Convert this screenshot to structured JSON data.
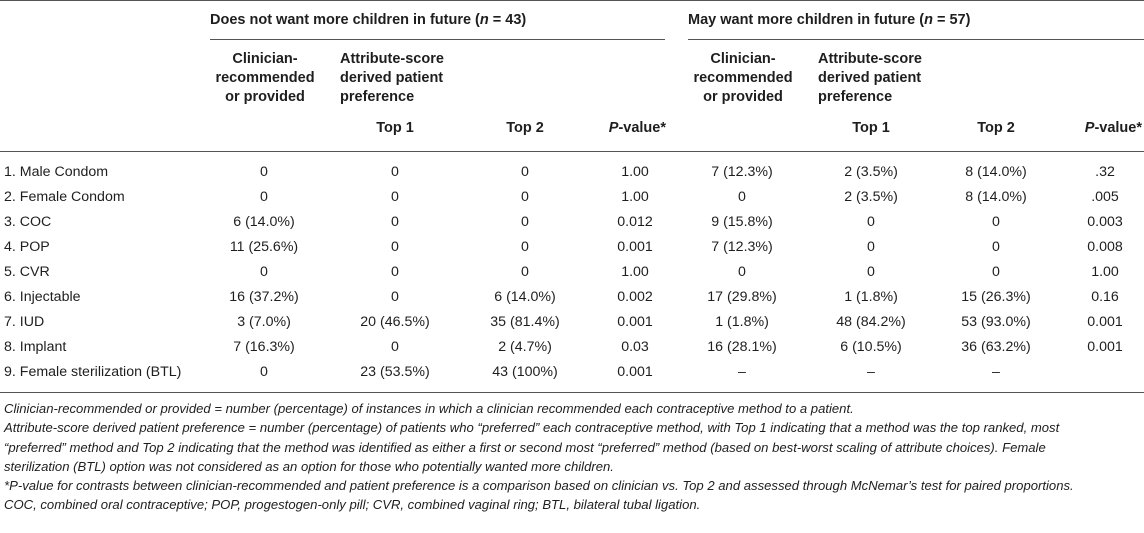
{
  "groups": [
    {
      "label_pre": "Does not want more children in future (",
      "n_label": "n",
      "label_post": " = 43)"
    },
    {
      "label_pre": "May want more children in future (",
      "n_label": "n",
      "label_post": " = 57)"
    }
  ],
  "subheaders": {
    "clinician": [
      "Clinician-",
      "recommended",
      "or provided"
    ],
    "attribute": [
      "Attribute-score",
      "derived patient",
      "preference"
    ],
    "top1": "Top 1",
    "top2": "Top 2",
    "pvalue_p": "P",
    "pvalue_rest": "-value*"
  },
  "rows": [
    {
      "method": "1. Male Condom",
      "g1": [
        "0",
        "0",
        "0",
        "1.00"
      ],
      "g2": [
        "7 (12.3%)",
        "2 (3.5%)",
        "8 (14.0%)",
        ".32"
      ]
    },
    {
      "method": "2. Female Condom",
      "g1": [
        "0",
        "0",
        "0",
        "1.00"
      ],
      "g2": [
        "0",
        "2 (3.5%)",
        "8 (14.0%)",
        ".005"
      ]
    },
    {
      "method": "3. COC",
      "g1": [
        "6 (14.0%)",
        "0",
        "0",
        "0.012"
      ],
      "g2": [
        "9 (15.8%)",
        "0",
        "0",
        "0.003"
      ]
    },
    {
      "method": "4. POP",
      "g1": [
        "11 (25.6%)",
        "0",
        "0",
        "0.001"
      ],
      "g2": [
        "7 (12.3%)",
        "0",
        "0",
        "0.008"
      ]
    },
    {
      "method": "5. CVR",
      "g1": [
        "0",
        "0",
        "0",
        "1.00"
      ],
      "g2": [
        "0",
        "0",
        "0",
        "1.00"
      ]
    },
    {
      "method": "6. Injectable",
      "g1": [
        "16 (37.2%)",
        "0",
        "6 (14.0%)",
        "0.002"
      ],
      "g2": [
        "17 (29.8%)",
        "1 (1.8%)",
        "15 (26.3%)",
        "0.16"
      ]
    },
    {
      "method": "7. IUD",
      "g1": [
        "3 (7.0%)",
        "20 (46.5%)",
        "35 (81.4%)",
        "0.001"
      ],
      "g2": [
        "1 (1.8%)",
        "48 (84.2%)",
        "53 (93.0%)",
        "0.001"
      ]
    },
    {
      "method": "8. Implant",
      "g1": [
        "7 (16.3%)",
        "0",
        "2 (4.7%)",
        "0.03"
      ],
      "g2": [
        "16 (28.1%)",
        "6 (10.5%)",
        "36 (63.2%)",
        "0.001"
      ]
    },
    {
      "method": "9. Female sterilization (BTL)",
      "g1": [
        "0",
        "23 (53.5%)",
        "43 (100%)",
        "0.001"
      ],
      "g2": [
        "–",
        "–",
        "–",
        ""
      ]
    }
  ],
  "footnotes": {
    "line1": "Clinician-recommended or provided = number (percentage) of instances in which a clinician recommended each contraceptive method to a patient.",
    "para2": [
      "Attribute-score derived patient preference = number (percentage) of patients who “preferred” each contraceptive method, with Top 1 indicating that a method was the top ranked, most",
      "“preferred” method and Top 2 indicating that the method was identified as either a first or second most “preferred” method (based on best-worst scaling of attribute choices). Female",
      "sterilization (BTL) option was not considered as an option for those who potentially wanted more children."
    ],
    "line3_star": "*",
    "line3_p": "P",
    "line3_rest": "-value for contrasts between clinician-recommended and patient preference is a comparison based on clinician vs. Top 2 and assessed through McNemar’s test for paired proportions.",
    "line4": "COC, combined oral contraceptive; POP, progestogen-only pill; CVR, combined vaginal ring; BTL, bilateral tubal ligation."
  }
}
